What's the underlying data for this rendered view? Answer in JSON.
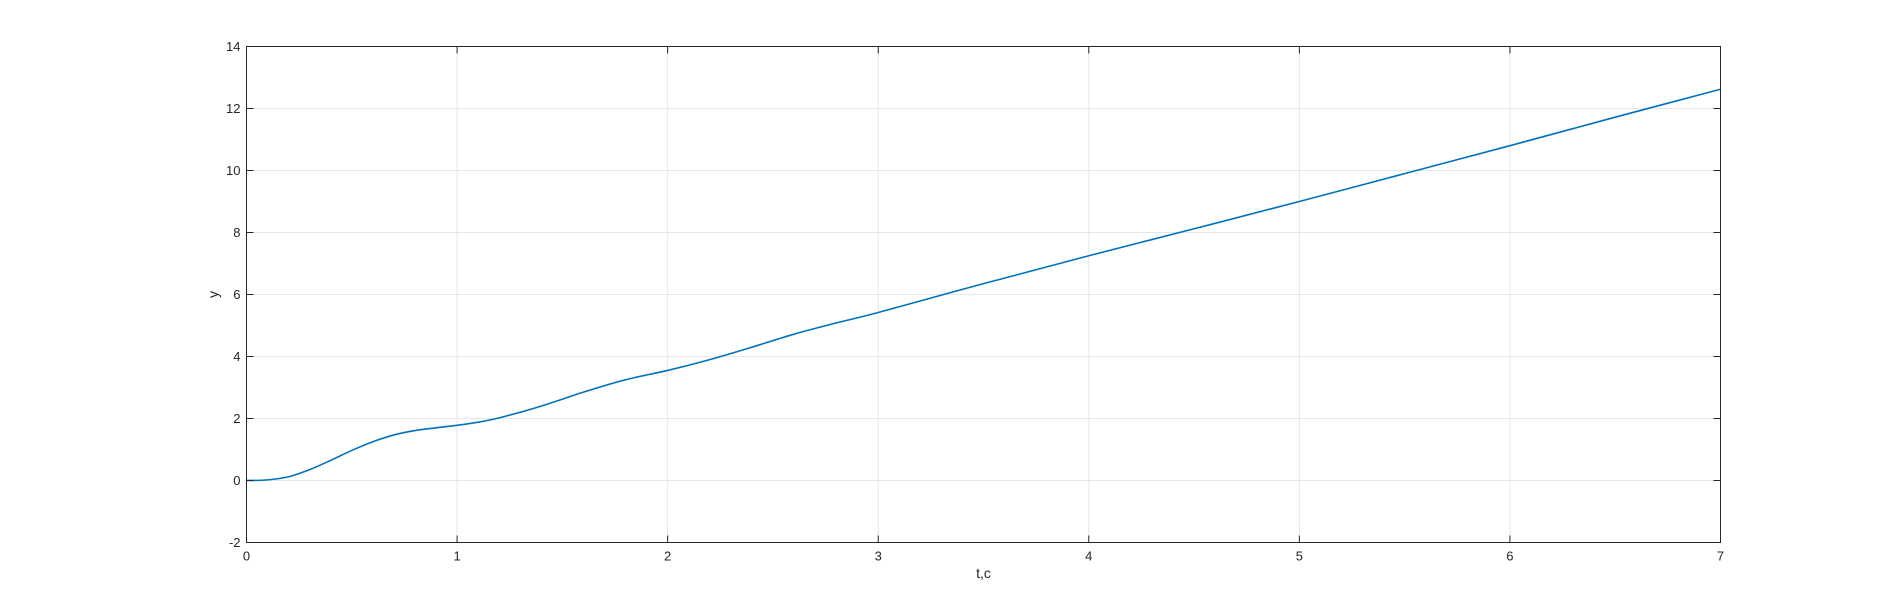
{
  "chart_data": {
    "type": "line",
    "title": "",
    "xlabel": "t,c",
    "ylabel": "y",
    "xlim": [
      0,
      7
    ],
    "ylim": [
      -2,
      14
    ],
    "grid": true,
    "legend": "none",
    "x_ticks": [
      0,
      1,
      2,
      3,
      4,
      5,
      6,
      7
    ],
    "y_ticks": [
      -2,
      0,
      2,
      4,
      6,
      8,
      10,
      12,
      14
    ],
    "series": [
      {
        "color": "#0072bd",
        "x": [
          0,
          0.1,
          0.2,
          0.3,
          0.4,
          0.5,
          0.6,
          0.7,
          0.8,
          0.9,
          1.0,
          1.1,
          1.2,
          1.4,
          1.6,
          1.8,
          2.0,
          2.2,
          2.4,
          2.6,
          2.8,
          3.0,
          3.5,
          4.0,
          4.5,
          5.0,
          5.5,
          6.0,
          6.5,
          7.0
        ],
        "y": [
          0,
          0.02,
          0.12,
          0.35,
          0.65,
          0.97,
          1.25,
          1.47,
          1.61,
          1.7,
          1.78,
          1.88,
          2.02,
          2.4,
          2.85,
          3.25,
          3.55,
          3.9,
          4.3,
          4.72,
          5.08,
          5.42,
          6.35,
          7.25,
          8.12,
          9.0,
          9.9,
          10.8,
          11.72,
          12.62
        ]
      }
    ]
  }
}
